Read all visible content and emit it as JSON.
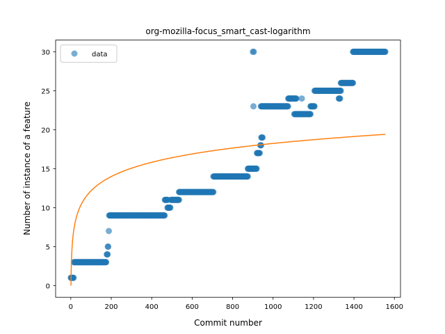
{
  "chart_data": {
    "type": "scatter",
    "title": "org-mozilla-focus_smart_cast-logarithm",
    "xlabel": "Commit number",
    "ylabel": "Number of instance of a feature",
    "xlim": [
      -75,
      1630
    ],
    "ylim": [
      -1.5,
      31.5
    ],
    "xticks": [
      0,
      200,
      400,
      600,
      800,
      1000,
      1200,
      1400,
      1600
    ],
    "yticks": [
      0,
      5,
      10,
      15,
      20,
      25,
      30
    ],
    "grid": false,
    "legend": {
      "placement": "top-left",
      "entries": [
        "data"
      ]
    },
    "colors": {
      "data": "#1f77b4",
      "fit": "#ff7f0e"
    },
    "series": [
      {
        "name": "data",
        "kind": "scatter",
        "segments": [
          {
            "x_start": 0,
            "x_end": 15,
            "y": 1
          },
          {
            "x_start": 15,
            "x_end": 175,
            "y": 3
          },
          {
            "x_start": 178,
            "x_end": 182,
            "y": 4
          },
          {
            "x_start": 183,
            "x_end": 186,
            "y": 5
          },
          {
            "x_start": 190,
            "x_end": 465,
            "y": 9
          },
          {
            "x_start": 465,
            "x_end": 480,
            "y": 11
          },
          {
            "x_start": 478,
            "x_end": 492,
            "y": 10
          },
          {
            "x_start": 495,
            "x_end": 535,
            "y": 11
          },
          {
            "x_start": 535,
            "x_end": 705,
            "y": 12
          },
          {
            "x_start": 705,
            "x_end": 875,
            "y": 14
          },
          {
            "x_start": 875,
            "x_end": 920,
            "y": 15
          },
          {
            "x_start": 920,
            "x_end": 935,
            "y": 17
          },
          {
            "x_start": 937,
            "x_end": 942,
            "y": 18
          },
          {
            "x_start": 942,
            "x_end": 948,
            "y": 19
          },
          {
            "x_start": 940,
            "x_end": 1075,
            "y": 23
          },
          {
            "x_start": 1075,
            "x_end": 1115,
            "y": 24
          },
          {
            "x_start": 1105,
            "x_end": 1185,
            "y": 22
          },
          {
            "x_start": 1185,
            "x_end": 1205,
            "y": 23
          },
          {
            "x_start": 1205,
            "x_end": 1335,
            "y": 25
          },
          {
            "x_start": 1325,
            "x_end": 1332,
            "y": 24
          },
          {
            "x_start": 1335,
            "x_end": 1395,
            "y": 26
          },
          {
            "x_start": 1395,
            "x_end": 1555,
            "y": 30
          }
        ],
        "points": [
          {
            "x": 188,
            "y": 7
          },
          {
            "x": 900,
            "y": 30
          },
          {
            "x": 905,
            "y": 30
          },
          {
            "x": 903,
            "y": 23
          },
          {
            "x": 1142,
            "y": 24
          }
        ]
      },
      {
        "name": "",
        "kind": "line",
        "function": "log",
        "a": 0.0,
        "b": 2.64,
        "x_range": [
          1,
          1555
        ]
      }
    ]
  }
}
